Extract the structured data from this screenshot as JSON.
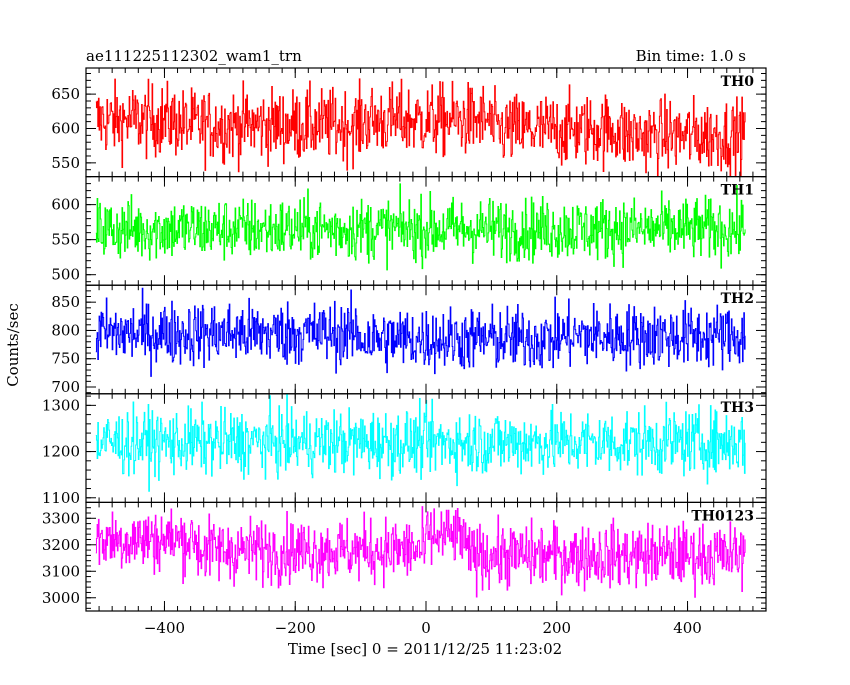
{
  "header": {
    "title": "ae111225112302_wam1_trn",
    "bin_time": "Bin time: 1.0 s"
  },
  "chart_data": {
    "type": "line",
    "title": "ae111225112302_wam1_trn",
    "xlabel": "Time [sec] 0 = 2011/12/25 11:23:02",
    "ylabel": "Counts/sec",
    "xlim": [
      -520,
      520
    ],
    "xticks": [
      -400,
      -200,
      0,
      200,
      400
    ],
    "xtick_labels": [
      "−400",
      "−200",
      "0",
      "200",
      "400"
    ],
    "x_range_data": [
      -505,
      488
    ],
    "grid": false,
    "legend": "none",
    "panels": [
      {
        "name": "TH0",
        "color": "#ff0000",
        "ylim": [
          530,
          688
        ],
        "yticks": [
          550,
          600,
          650
        ],
        "mean": 610,
        "spread": 26,
        "min": 525,
        "max": 700,
        "segment_means": [
          {
            "x": [
              -505,
              -380
            ],
            "mean": 612
          },
          {
            "x": [
              -380,
              -100
            ],
            "mean": 605
          },
          {
            "x": [
              -100,
              100
            ],
            "mean": 612
          },
          {
            "x": [
              100,
              300
            ],
            "mean": 598
          },
          {
            "x": [
              300,
              488
            ],
            "mean": 590
          }
        ]
      },
      {
        "name": "TH1",
        "color": "#00ff00",
        "ylim": [
          485,
          640
        ],
        "yticks": [
          500,
          550,
          600
        ],
        "mean": 565,
        "spread": 22,
        "min": 480,
        "max": 645,
        "segment_means": [
          {
            "x": [
              -505,
              488
            ],
            "mean": 565
          }
        ]
      },
      {
        "name": "TH2",
        "color": "#0000ff",
        "ylim": [
          688,
          880
        ],
        "yticks": [
          700,
          750,
          800,
          850
        ],
        "mean": 790,
        "spread": 28,
        "min": 685,
        "max": 880,
        "segment_means": [
          {
            "x": [
              -505,
              -100
            ],
            "mean": 795
          },
          {
            "x": [
              -100,
              200
            ],
            "mean": 785
          },
          {
            "x": [
              200,
              488
            ],
            "mean": 790
          }
        ]
      },
      {
        "name": "TH3",
        "color": "#00ffff",
        "ylim": [
          1090,
          1325
        ],
        "yticks": [
          1100,
          1200,
          1300
        ],
        "mean": 1220,
        "spread": 35,
        "min": 1090,
        "max": 1330,
        "segment_means": [
          {
            "x": [
              -505,
              488
            ],
            "mean": 1220
          }
        ]
      },
      {
        "name": "TH0123",
        "color": "#ff00ff",
        "ylim": [
          2950,
          3360
        ],
        "yticks": [
          3000,
          3100,
          3200,
          3300
        ],
        "mean": 3180,
        "spread": 60,
        "min": 2960,
        "max": 3370,
        "segment_means": [
          {
            "x": [
              -505,
              -350
            ],
            "mean": 3220
          },
          {
            "x": [
              -350,
              0
            ],
            "mean": 3180
          },
          {
            "x": [
              0,
              60
            ],
            "mean": 3230
          },
          {
            "x": [
              60,
              488
            ],
            "mean": 3160
          }
        ]
      }
    ]
  }
}
